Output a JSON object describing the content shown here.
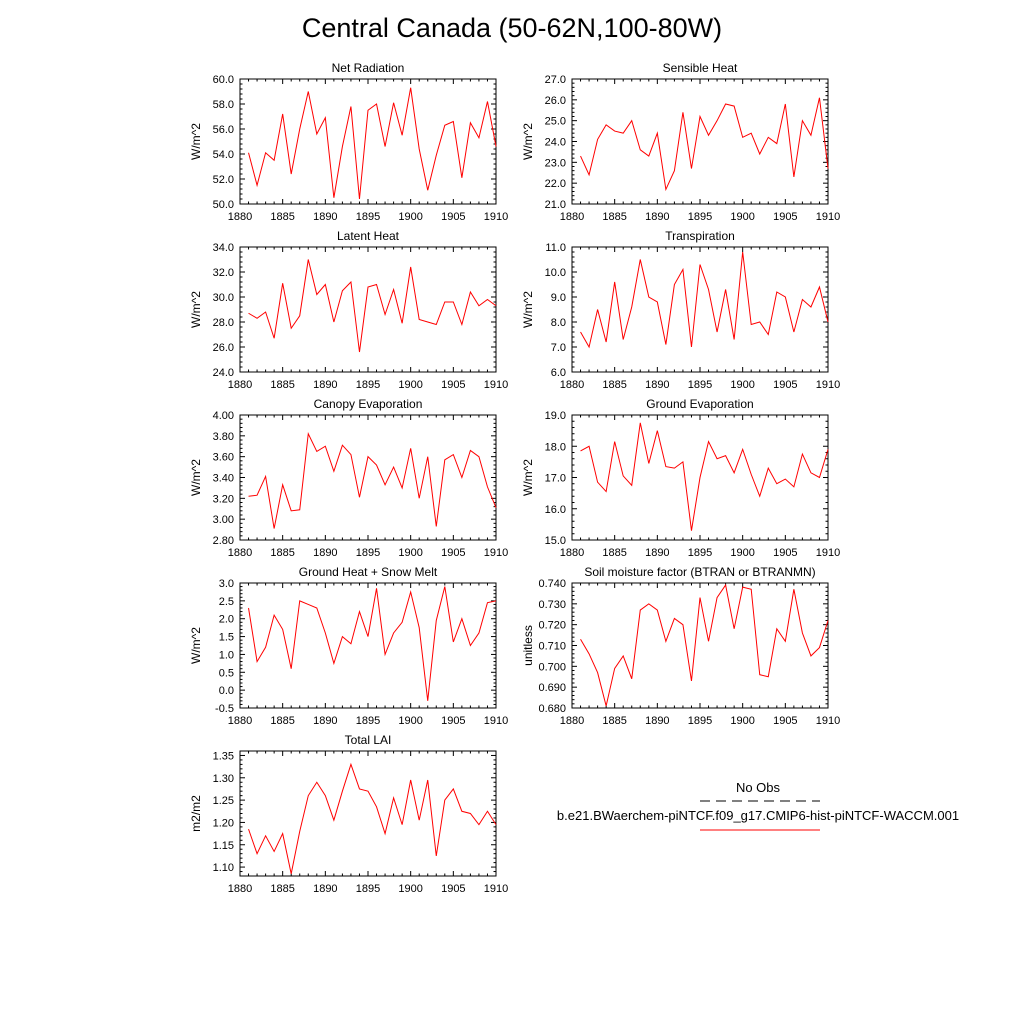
{
  "title": "Central Canada (50-62N,100-80W)",
  "legend": {
    "obs_label": "No Obs",
    "case_label": "b.e21.BWaerchem-piNTCF.f09_g17.CMIP6-hist-piNTCF-WACCM.001",
    "obs_color": "#000000",
    "case_color": "#ff0000"
  },
  "line_color": "#ff0000",
  "chart_data": [
    {
      "type": "line",
      "title": "Net Radiation",
      "ylabel": "W/m^2",
      "xlim": [
        1880,
        1910
      ],
      "xticks": [
        1880,
        1885,
        1890,
        1895,
        1900,
        1905,
        1910
      ],
      "ylim": [
        50.0,
        60.0
      ],
      "yticks": [
        "50.0",
        "52.0",
        "54.0",
        "56.0",
        "58.0",
        "60.0"
      ],
      "x": [
        1881,
        1882,
        1883,
        1884,
        1885,
        1886,
        1887,
        1888,
        1889,
        1890,
        1891,
        1892,
        1893,
        1894,
        1895,
        1896,
        1897,
        1898,
        1899,
        1900,
        1901,
        1902,
        1903,
        1904,
        1905,
        1906,
        1907,
        1908,
        1909,
        1910
      ],
      "values": [
        54.1,
        51.5,
        54.1,
        53.5,
        57.2,
        52.4,
        56.0,
        59.0,
        55.6,
        56.9,
        50.5,
        54.6,
        57.8,
        50.4,
        57.5,
        58.0,
        54.6,
        58.1,
        55.5,
        59.3,
        54.4,
        51.1,
        53.9,
        56.3,
        56.6,
        52.1,
        56.5,
        55.3,
        58.2,
        54.6
      ]
    },
    {
      "type": "line",
      "title": "Sensible Heat",
      "ylabel": "W/m^2",
      "xlim": [
        1880,
        1910
      ],
      "xticks": [
        1880,
        1885,
        1890,
        1895,
        1900,
        1905,
        1910
      ],
      "ylim": [
        21.0,
        27.0
      ],
      "yticks": [
        "21.0",
        "22.0",
        "23.0",
        "24.0",
        "25.0",
        "26.0",
        "27.0"
      ],
      "x": [
        1881,
        1882,
        1883,
        1884,
        1885,
        1886,
        1887,
        1888,
        1889,
        1890,
        1891,
        1892,
        1893,
        1894,
        1895,
        1896,
        1897,
        1898,
        1899,
        1900,
        1901,
        1902,
        1903,
        1904,
        1905,
        1906,
        1907,
        1908,
        1909,
        1910
      ],
      "values": [
        23.3,
        22.4,
        24.1,
        24.8,
        24.5,
        24.4,
        25.0,
        23.6,
        23.3,
        24.4,
        21.7,
        22.6,
        25.4,
        22.7,
        25.2,
        24.3,
        25.0,
        25.8,
        25.7,
        24.2,
        24.4,
        23.4,
        24.2,
        23.9,
        25.8,
        22.3,
        25.0,
        24.3,
        26.1,
        22.7
      ]
    },
    {
      "type": "line",
      "title": "Latent Heat",
      "ylabel": "W/m^2",
      "xlim": [
        1880,
        1910
      ],
      "xticks": [
        1880,
        1885,
        1890,
        1895,
        1900,
        1905,
        1910
      ],
      "ylim": [
        24.0,
        34.0
      ],
      "yticks": [
        "24.0",
        "26.0",
        "28.0",
        "30.0",
        "32.0",
        "34.0"
      ],
      "x": [
        1881,
        1882,
        1883,
        1884,
        1885,
        1886,
        1887,
        1888,
        1889,
        1890,
        1891,
        1892,
        1893,
        1894,
        1895,
        1896,
        1897,
        1898,
        1899,
        1900,
        1901,
        1902,
        1903,
        1904,
        1905,
        1906,
        1907,
        1908,
        1909,
        1910
      ],
      "values": [
        28.7,
        28.3,
        28.8,
        26.7,
        31.1,
        27.5,
        28.5,
        33.0,
        30.2,
        31.0,
        28.0,
        30.5,
        31.2,
        25.6,
        30.8,
        31.0,
        28.6,
        30.6,
        27.9,
        32.4,
        28.2,
        28.0,
        27.8,
        29.6,
        29.6,
        27.8,
        30.4,
        29.3,
        29.8,
        29.3
      ]
    },
    {
      "type": "line",
      "title": "Transpiration",
      "ylabel": "W/m^2",
      "xlim": [
        1880,
        1910
      ],
      "xticks": [
        1880,
        1885,
        1890,
        1895,
        1900,
        1905,
        1910
      ],
      "ylim": [
        6.0,
        11.0
      ],
      "yticks": [
        "6.0",
        "7.0",
        "8.0",
        "9.0",
        "10.0",
        "11.0"
      ],
      "x": [
        1881,
        1882,
        1883,
        1884,
        1885,
        1886,
        1887,
        1888,
        1889,
        1890,
        1891,
        1892,
        1893,
        1894,
        1895,
        1896,
        1897,
        1898,
        1899,
        1900,
        1901,
        1902,
        1903,
        1904,
        1905,
        1906,
        1907,
        1908,
        1909,
        1910
      ],
      "values": [
        7.6,
        7.0,
        8.5,
        7.2,
        9.6,
        7.3,
        8.6,
        10.5,
        9.0,
        8.8,
        7.1,
        9.5,
        10.1,
        7.0,
        10.3,
        9.3,
        7.6,
        9.3,
        7.3,
        10.8,
        7.9,
        8.0,
        7.5,
        9.2,
        9.0,
        7.6,
        8.9,
        8.6,
        9.4,
        8.0
      ]
    },
    {
      "type": "line",
      "title": "Canopy Evaporation",
      "ylabel": "W/m^2",
      "xlim": [
        1880,
        1910
      ],
      "xticks": [
        1880,
        1885,
        1890,
        1895,
        1900,
        1905,
        1910
      ],
      "ylim": [
        2.8,
        4.0
      ],
      "yticks": [
        "2.80",
        "3.00",
        "3.20",
        "3.40",
        "3.60",
        "3.80",
        "4.00"
      ],
      "x": [
        1881,
        1882,
        1883,
        1884,
        1885,
        1886,
        1887,
        1888,
        1889,
        1890,
        1891,
        1892,
        1893,
        1894,
        1895,
        1896,
        1897,
        1898,
        1899,
        1900,
        1901,
        1902,
        1903,
        1904,
        1905,
        1906,
        1907,
        1908,
        1909,
        1910
      ],
      "values": [
        3.22,
        3.23,
        3.41,
        2.91,
        3.33,
        3.08,
        3.09,
        3.82,
        3.65,
        3.7,
        3.46,
        3.71,
        3.62,
        3.21,
        3.6,
        3.52,
        3.33,
        3.5,
        3.3,
        3.68,
        3.2,
        3.6,
        2.93,
        3.57,
        3.62,
        3.4,
        3.66,
        3.6,
        3.31,
        3.11
      ]
    },
    {
      "type": "line",
      "title": "Ground Evaporation",
      "ylabel": "W/m^2",
      "xlim": [
        1880,
        1910
      ],
      "xticks": [
        1880,
        1885,
        1890,
        1895,
        1900,
        1905,
        1910
      ],
      "ylim": [
        15.0,
        19.0
      ],
      "yticks": [
        "15.0",
        "16.0",
        "17.0",
        "18.0",
        "19.0"
      ],
      "x": [
        1881,
        1882,
        1883,
        1884,
        1885,
        1886,
        1887,
        1888,
        1889,
        1890,
        1891,
        1892,
        1893,
        1894,
        1895,
        1896,
        1897,
        1898,
        1899,
        1900,
        1901,
        1902,
        1903,
        1904,
        1905,
        1906,
        1907,
        1908,
        1909,
        1910
      ],
      "values": [
        17.85,
        18.0,
        16.85,
        16.55,
        18.15,
        17.05,
        16.75,
        18.75,
        17.45,
        18.5,
        17.35,
        17.3,
        17.5,
        15.3,
        17.0,
        18.15,
        17.6,
        17.7,
        17.15,
        17.9,
        17.1,
        16.4,
        17.3,
        16.8,
        16.95,
        16.7,
        17.75,
        17.15,
        17.0,
        17.9
      ]
    },
    {
      "type": "line",
      "title": "Ground Heat + Snow Melt",
      "ylabel": "W/m^2",
      "xlim": [
        1880,
        1910
      ],
      "xticks": [
        1880,
        1885,
        1890,
        1895,
        1900,
        1905,
        1910
      ],
      "ylim": [
        -0.5,
        3.0
      ],
      "yticks": [
        "-0.5",
        "0.0",
        "0.5",
        "1.0",
        "1.5",
        "2.0",
        "2.5",
        "3.0"
      ],
      "x": [
        1881,
        1882,
        1883,
        1884,
        1885,
        1886,
        1887,
        1888,
        1889,
        1890,
        1891,
        1892,
        1893,
        1894,
        1895,
        1896,
        1897,
        1898,
        1899,
        1900,
        1901,
        1902,
        1903,
        1904,
        1905,
        1906,
        1907,
        1908,
        1909,
        1910
      ],
      "values": [
        2.3,
        0.8,
        1.2,
        2.1,
        1.7,
        0.6,
        2.5,
        2.4,
        2.3,
        1.6,
        0.75,
        1.5,
        1.3,
        2.2,
        1.5,
        2.85,
        1.0,
        1.6,
        1.9,
        2.75,
        1.75,
        -0.3,
        1.95,
        2.9,
        1.35,
        2.0,
        1.25,
        1.6,
        2.45,
        2.5
      ]
    },
    {
      "type": "line",
      "title": "Soil moisture factor (BTRAN or BTRANMN)",
      "ylabel": "unitless",
      "xlim": [
        1880,
        1910
      ],
      "xticks": [
        1880,
        1885,
        1890,
        1895,
        1900,
        1905,
        1910
      ],
      "ylim": [
        0.68,
        0.74
      ],
      "yticks": [
        "0.680",
        "0.690",
        "0.700",
        "0.710",
        "0.720",
        "0.730",
        "0.740"
      ],
      "x": [
        1881,
        1882,
        1883,
        1884,
        1885,
        1886,
        1887,
        1888,
        1889,
        1890,
        1891,
        1892,
        1893,
        1894,
        1895,
        1896,
        1897,
        1898,
        1899,
        1900,
        1901,
        1902,
        1903,
        1904,
        1905,
        1906,
        1907,
        1908,
        1909,
        1910
      ],
      "values": [
        0.713,
        0.706,
        0.697,
        0.681,
        0.699,
        0.705,
        0.694,
        0.727,
        0.73,
        0.727,
        0.712,
        0.723,
        0.72,
        0.693,
        0.733,
        0.712,
        0.733,
        0.739,
        0.718,
        0.738,
        0.737,
        0.696,
        0.695,
        0.718,
        0.712,
        0.737,
        0.716,
        0.705,
        0.709,
        0.722
      ]
    },
    {
      "type": "line",
      "title": "Total LAI",
      "ylabel": "m2/m2",
      "xlim": [
        1880,
        1910
      ],
      "xticks": [
        1880,
        1885,
        1890,
        1895,
        1900,
        1905,
        1910
      ],
      "ylim": [
        1.08,
        1.36
      ],
      "yticks": [
        "1.10",
        "1.15",
        "1.20",
        "1.25",
        "1.30",
        "1.35"
      ],
      "x": [
        1881,
        1882,
        1883,
        1884,
        1885,
        1886,
        1887,
        1888,
        1889,
        1890,
        1891,
        1892,
        1893,
        1894,
        1895,
        1896,
        1897,
        1898,
        1899,
        1900,
        1901,
        1902,
        1903,
        1904,
        1905,
        1906,
        1907,
        1908,
        1909,
        1910
      ],
      "values": [
        1.185,
        1.13,
        1.17,
        1.135,
        1.175,
        1.085,
        1.18,
        1.26,
        1.29,
        1.26,
        1.205,
        1.27,
        1.33,
        1.275,
        1.27,
        1.235,
        1.175,
        1.255,
        1.195,
        1.295,
        1.205,
        1.295,
        1.125,
        1.25,
        1.275,
        1.225,
        1.22,
        1.195,
        1.225,
        1.195
      ]
    }
  ]
}
